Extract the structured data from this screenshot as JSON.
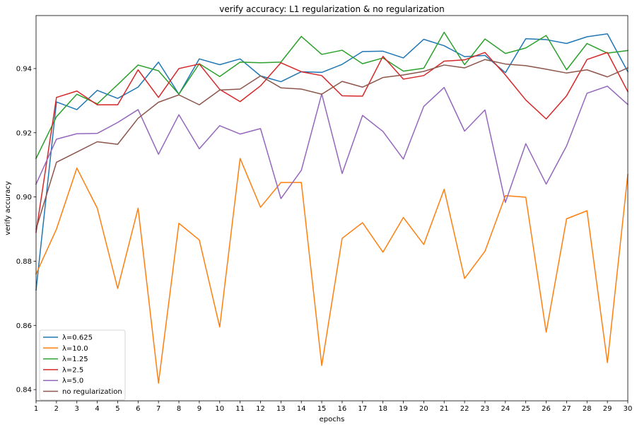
{
  "chart_data": {
    "type": "line",
    "title": "verify accuracy: L1 regularization & no regularization",
    "xlabel": "epochs",
    "ylabel": "verify accuracy",
    "x": [
      1,
      2,
      3,
      4,
      5,
      6,
      7,
      8,
      9,
      10,
      11,
      12,
      13,
      14,
      15,
      16,
      17,
      18,
      19,
      20,
      21,
      22,
      23,
      24,
      25,
      26,
      27,
      28,
      29,
      30
    ],
    "xlim": [
      1,
      30
    ],
    "ylim": [
      0.8365,
      0.9565
    ],
    "yticks": [
      0.84,
      0.86,
      0.88,
      0.9,
      0.92,
      0.94
    ],
    "ytick_labels": [
      "0.84",
      "0.86",
      "0.88",
      "0.90",
      "0.92",
      "0.94"
    ],
    "xtick_labels": [
      "1",
      "2",
      "3",
      "4",
      "5",
      "6",
      "7",
      "8",
      "9",
      "10",
      "11",
      "12",
      "13",
      "14",
      "15",
      "16",
      "17",
      "18",
      "19",
      "20",
      "21",
      "22",
      "23",
      "24",
      "25",
      "26",
      "27",
      "28",
      "29",
      "30"
    ],
    "grid": false,
    "legend_position": "lower-left",
    "series": [
      {
        "name": "λ=0.625",
        "color": "#1f77b4",
        "values": [
          0.871,
          0.9296,
          0.9272,
          0.9332,
          0.9307,
          0.9342,
          0.942,
          0.932,
          0.943,
          0.9412,
          0.943,
          0.9377,
          0.9359,
          0.939,
          0.9388,
          0.9413,
          0.9453,
          0.9454,
          0.9433,
          0.9491,
          0.9471,
          0.9437,
          0.9441,
          0.9387,
          0.9493,
          0.949,
          0.9478,
          0.9499,
          0.9508,
          0.939
        ]
      },
      {
        "name": "λ=10.0",
        "color": "#ff7f0e",
        "values": [
          0.876,
          0.89,
          0.909,
          0.8965,
          0.8715,
          0.8965,
          0.842,
          0.8918,
          0.8866,
          0.8595,
          0.912,
          0.8968,
          0.9045,
          0.9045,
          0.8475,
          0.8871,
          0.892,
          0.8828,
          0.8936,
          0.8852,
          0.9024,
          0.8746,
          0.8831,
          0.9004,
          0.8999,
          0.8579,
          0.8932,
          0.8957,
          0.8484,
          0.907
        ]
      },
      {
        "name": "λ=1.25",
        "color": "#2ca02c",
        "values": [
          0.912,
          0.925,
          0.932,
          0.929,
          0.935,
          0.9411,
          0.9393,
          0.932,
          0.9415,
          0.9375,
          0.942,
          0.9418,
          0.942,
          0.95,
          0.9444,
          0.9457,
          0.9415,
          0.9433,
          0.9392,
          0.9401,
          0.9513,
          0.9412,
          0.9492,
          0.9447,
          0.9464,
          0.9503,
          0.9396,
          0.9478,
          0.9448,
          0.9456
        ]
      },
      {
        "name": "λ=2.5",
        "color": "#d62728",
        "values": [
          0.889,
          0.931,
          0.933,
          0.9287,
          0.9287,
          0.9396,
          0.931,
          0.94,
          0.9414,
          0.9335,
          0.9297,
          0.9346,
          0.9418,
          0.939,
          0.9378,
          0.9315,
          0.9314,
          0.9438,
          0.9367,
          0.9378,
          0.9423,
          0.9427,
          0.945,
          0.938,
          0.9302,
          0.9243,
          0.9315,
          0.9428,
          0.945,
          0.9328
        ]
      },
      {
        "name": "λ=5.0",
        "color": "#9467bd",
        "values": [
          0.904,
          0.918,
          0.9197,
          0.9198,
          0.9232,
          0.9272,
          0.9133,
          0.9256,
          0.915,
          0.9222,
          0.9196,
          0.9213,
          0.8995,
          0.9083,
          0.9321,
          0.9073,
          0.9254,
          0.9204,
          0.9118,
          0.9282,
          0.9341,
          0.9205,
          0.9271,
          0.8983,
          0.9166,
          0.904,
          0.9159,
          0.9323,
          0.9345,
          0.9288
        ]
      },
      {
        "name": "no regularization",
        "color": "#8c564b",
        "values": [
          0.89,
          0.9108,
          0.914,
          0.9172,
          0.9164,
          0.9245,
          0.9295,
          0.9318,
          0.9287,
          0.9333,
          0.9336,
          0.9377,
          0.934,
          0.9336,
          0.932,
          0.936,
          0.9342,
          0.9372,
          0.938,
          0.9391,
          0.9411,
          0.9402,
          0.9428,
          0.9414,
          0.9409,
          0.9398,
          0.9386,
          0.9396,
          0.9374,
          0.9402
        ]
      }
    ]
  }
}
